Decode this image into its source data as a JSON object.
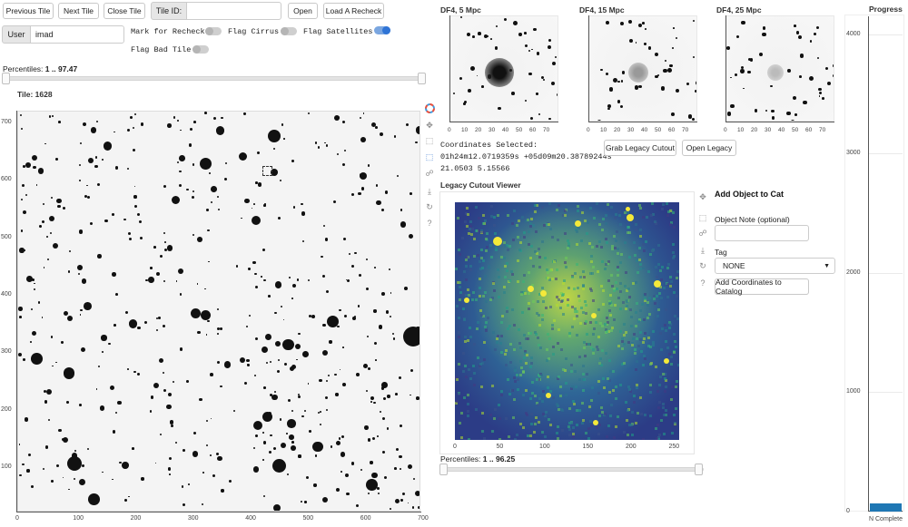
{
  "toolbar": {
    "previous_tile": "Previous Tile",
    "next_tile": "Next Tile",
    "close_tile": "Close Tile",
    "tile_id_label": "Tile ID:",
    "tile_id_value": "",
    "open": "Open",
    "load_recheck": "Load A Recheck"
  },
  "user": {
    "label": "User",
    "value": "imad"
  },
  "flags": {
    "mark_recheck": "Mark for Recheck",
    "flag_cirrus": "Flag Cirrus",
    "flag_satellites": "Flag Satellites",
    "flag_bad_tile": "Flag Bad Tile",
    "mark_recheck_on": false,
    "flag_cirrus_on": false,
    "flag_satellites_on": true,
    "flag_bad_tile_on": false
  },
  "main_image": {
    "percentiles_label": "Percentiles:",
    "percentiles_value": "1 .. 97.47",
    "tile_title": "Tile: 1628",
    "x_ticks": [
      "0",
      "100",
      "200",
      "300",
      "400",
      "500",
      "600",
      "700"
    ],
    "y_ticks": [
      "700",
      "600",
      "500",
      "400",
      "300",
      "200",
      "100"
    ]
  },
  "thumbnails": [
    {
      "title": "DF4, 5 Mpc",
      "x_ticks": [
        "0",
        "10",
        "20",
        "30",
        "40",
        "50",
        "60",
        "70"
      ]
    },
    {
      "title": "DF4, 15 Mpc",
      "x_ticks": [
        "0",
        "10",
        "20",
        "30",
        "40",
        "50",
        "60",
        "70"
      ]
    },
    {
      "title": "DF4, 25 Mpc",
      "x_ticks": [
        "0",
        "10",
        "20",
        "30",
        "40",
        "50",
        "60",
        "70"
      ]
    }
  ],
  "coordinates": {
    "header": "Coordinates Selected:",
    "line1": "01h24m12.0719359s +05d09m20.38789244s",
    "line2": "21.0503 5.15566",
    "grab_button": "Grab Legacy Cutout",
    "open_button": "Open Legacy"
  },
  "legacy": {
    "title": "Legacy Cutout Viewer",
    "x_ticks": [
      "0",
      "50",
      "100",
      "150",
      "200",
      "250"
    ],
    "percentiles_label": "Percentiles:",
    "percentiles_value": "1 .. 96.25"
  },
  "catalog": {
    "title": "Add Object to Cat",
    "note_label": "Object Note (optional)",
    "note_value": "",
    "tag_label": "Tag",
    "tag_value": "NONE",
    "add_button": "Add Coordinates to Catalog"
  },
  "progress": {
    "title": "Progress",
    "y_ticks": [
      "4000",
      "3000",
      "2000",
      "1000",
      "0"
    ],
    "category": "N Complete",
    "value": 65,
    "ymax": 4150,
    "bar_color": "#1f77b4"
  }
}
